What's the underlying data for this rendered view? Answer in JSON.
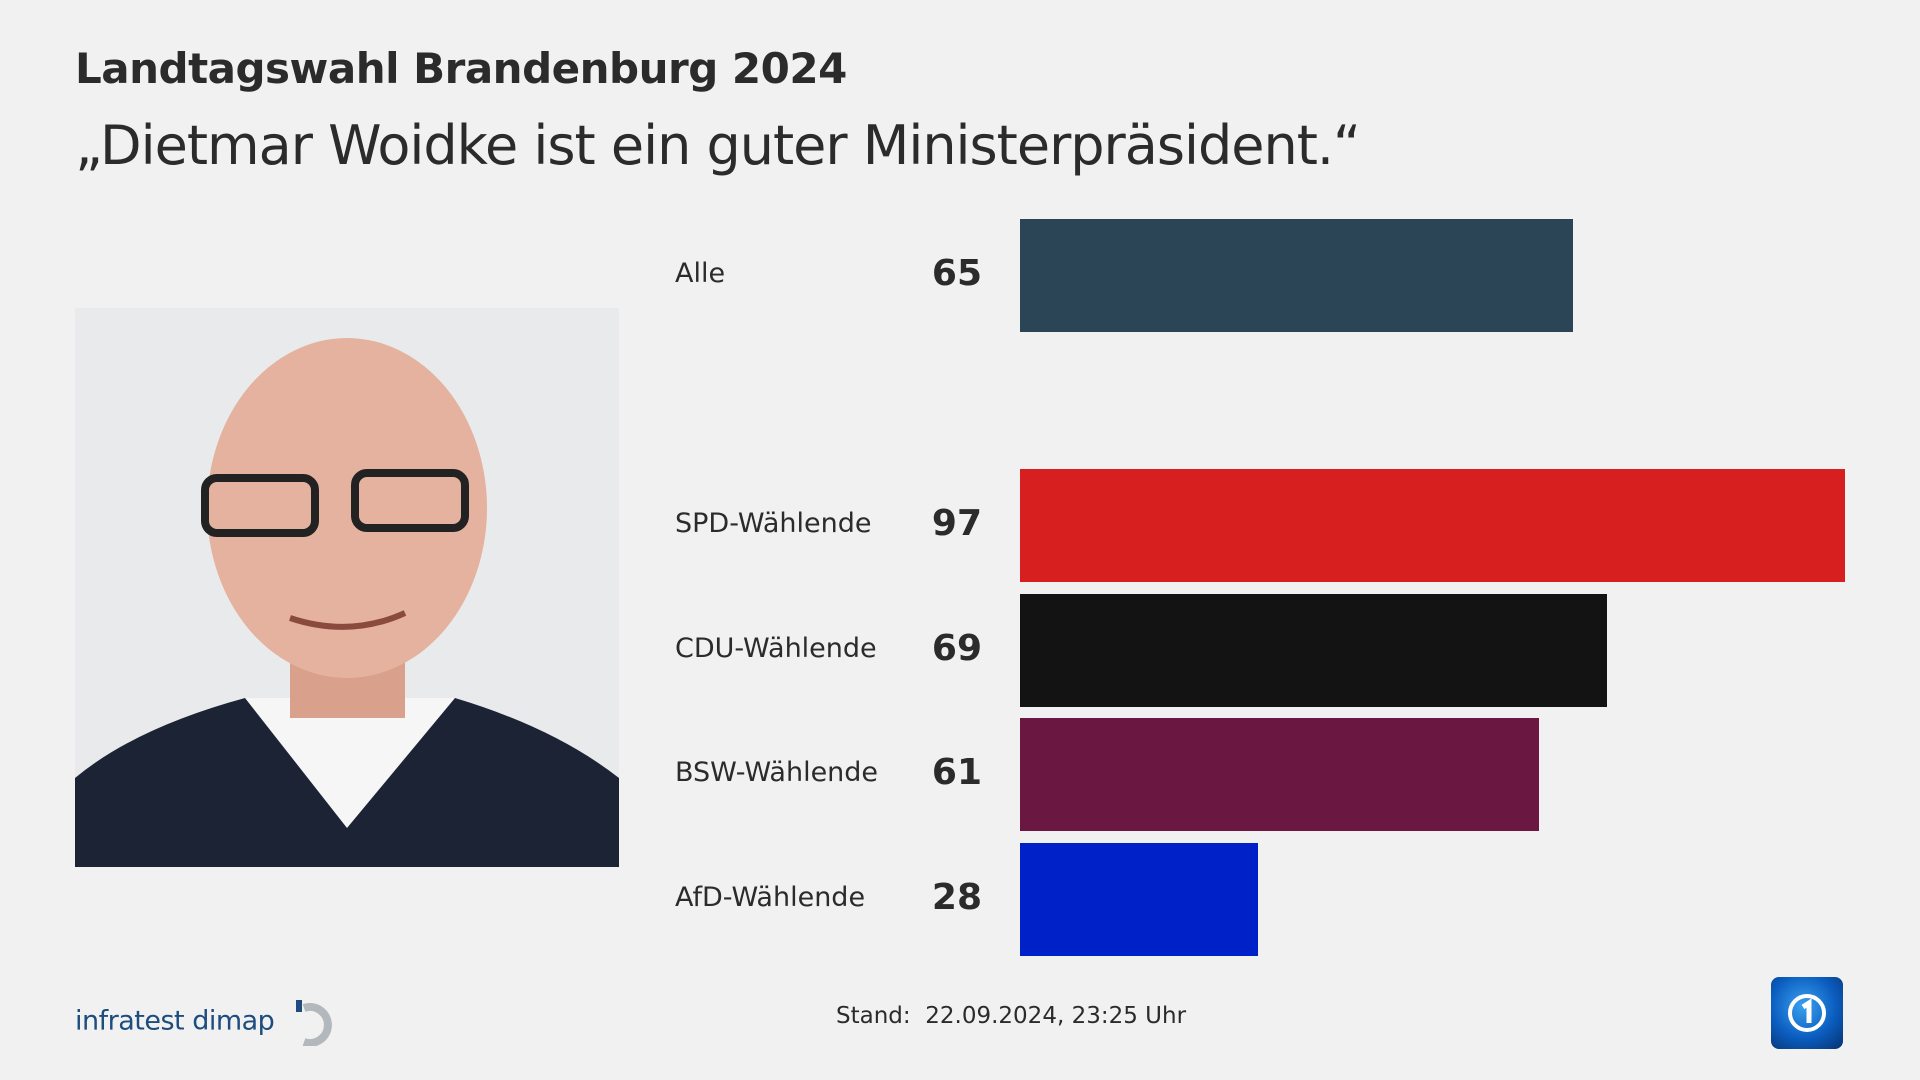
{
  "header": {
    "title": "Landtagswahl Brandenburg 2024",
    "subtitle": "„Dietmar Woidke ist ein guter Ministerpräsident.“"
  },
  "chart_data": {
    "type": "bar",
    "orientation": "horizontal",
    "categories": [
      "Alle",
      "SPD-Wählende",
      "CDU-Wählende",
      "BSW-Wählende",
      "AfD-Wählende"
    ],
    "values": [
      65,
      97,
      69,
      61,
      28
    ],
    "colors": [
      "#2b4557",
      "#d71f1f",
      "#131313",
      "#6a1841",
      "#0021c8"
    ],
    "xlim": [
      0,
      100
    ],
    "grid": false
  },
  "footer": {
    "source": "infratest dimap",
    "stand": "Stand:  22.09.2024, 23:25 Uhr"
  },
  "logos": {
    "ard": "ARD Das Erste logo"
  }
}
